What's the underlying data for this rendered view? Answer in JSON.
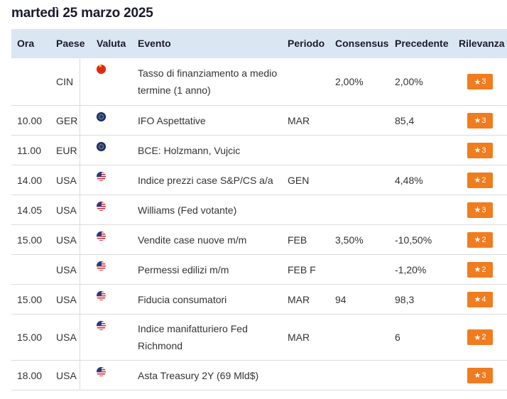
{
  "page": {
    "date_title": "martedì 25 marzo 2025"
  },
  "columns": {
    "ora": "Ora",
    "paese": "Paese",
    "valuta": "Valuta",
    "evento": "Evento",
    "periodo": "Periodo",
    "consensus": "Consensus",
    "precedente": "Precedente",
    "rilevanza": "Rilevanza"
  },
  "rows": [
    {
      "ora": "",
      "paese": "CIN",
      "flag": "china-flag-icon",
      "evento": "Tasso di finanziamento a medio termine (1 anno)",
      "periodo": "",
      "consensus": "2,00%",
      "precedente": "2,00%",
      "rilevanza": "3"
    },
    {
      "ora": "10.00",
      "paese": "GER",
      "flag": "eu-flag-icon",
      "evento": "IFO Aspettative",
      "periodo": "MAR",
      "consensus": "",
      "precedente": "85,4",
      "rilevanza": "3"
    },
    {
      "ora": "11.00",
      "paese": "EUR",
      "flag": "eu-flag-icon",
      "evento": "BCE: Holzmann, Vujcic",
      "periodo": "",
      "consensus": "",
      "precedente": "",
      "rilevanza": "3"
    },
    {
      "ora": "14.00",
      "paese": "USA",
      "flag": "us-flag-icon",
      "evento": "Indice prezzi case S&P/CS a/a",
      "periodo": "GEN",
      "consensus": "",
      "precedente": "4,48%",
      "rilevanza": "2"
    },
    {
      "ora": "14.05",
      "paese": "USA",
      "flag": "us-flag-icon",
      "evento": "Williams (Fed votante)",
      "periodo": "",
      "consensus": "",
      "precedente": "",
      "rilevanza": "3"
    },
    {
      "ora": "15.00",
      "paese": "USA",
      "flag": "us-flag-icon",
      "evento": "Vendite case nuove m/m",
      "periodo": "FEB",
      "consensus": "3,50%",
      "precedente": "-10,50%",
      "rilevanza": "2"
    },
    {
      "ora": "",
      "paese": "USA",
      "flag": "us-flag-icon",
      "evento": "Permessi edilizi m/m",
      "periodo": "FEB F",
      "consensus": "",
      "precedente": "-1,20%",
      "rilevanza": "2"
    },
    {
      "ora": "15.00",
      "paese": "USA",
      "flag": "us-flag-icon",
      "evento": "Fiducia consumatori",
      "periodo": "MAR",
      "consensus": "94",
      "precedente": "98,3",
      "rilevanza": "4"
    },
    {
      "ora": "15.00",
      "paese": "USA",
      "flag": "us-flag-icon",
      "evento": "Indice manifatturiero Fed Richmond",
      "periodo": "MAR",
      "consensus": "",
      "precedente": "6",
      "rilevanza": "2"
    },
    {
      "ora": "18.00",
      "paese": "USA",
      "flag": "us-flag-icon",
      "evento": "Asta Treasury 2Y (69 Mld$)",
      "periodo": "",
      "consensus": "",
      "precedente": "",
      "rilevanza": "3"
    }
  ],
  "colors": {
    "header_bg": "#dbe6f3",
    "badge": "#f07c20",
    "title": "#1a1a2e"
  }
}
